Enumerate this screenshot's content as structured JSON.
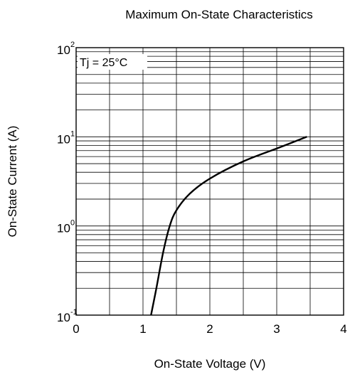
{
  "chart_data": {
    "type": "line",
    "title": "Maximum On-State Characteristics",
    "xlabel": "On-State Voltage  (V)",
    "ylabel": "On-State Current  (A)",
    "xlim": [
      0,
      4
    ],
    "ylim": [
      0.1,
      100
    ],
    "y_scale": "log",
    "grid": true,
    "x_ticks": [
      "0",
      "1",
      "2",
      "3",
      "4"
    ],
    "y_ticks": [
      {
        "base": "10",
        "exp": "-1"
      },
      {
        "base": "10",
        "exp": "0"
      },
      {
        "base": "10",
        "exp": "1"
      },
      {
        "base": "10",
        "exp": "2"
      }
    ],
    "annotation": "Tj = 25°C",
    "series": [
      {
        "x": [
          1.12,
          1.2,
          1.3,
          1.4,
          1.5,
          1.7,
          2.0,
          2.5,
          3.0,
          3.45
        ],
        "y": [
          0.1,
          0.2,
          0.5,
          1.0,
          1.5,
          2.3,
          3.4,
          5.3,
          7.4,
          10.0
        ]
      }
    ]
  }
}
